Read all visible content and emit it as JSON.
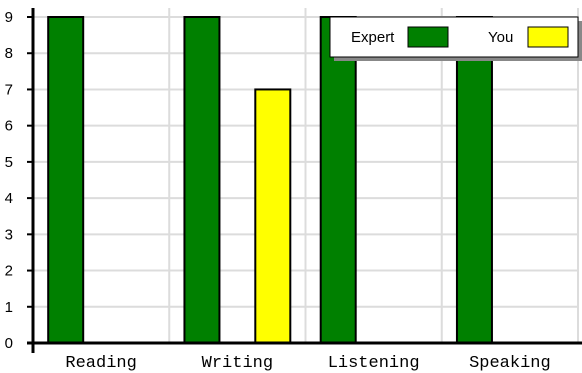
{
  "chart_data": {
    "type": "bar",
    "categories": [
      "Reading",
      "Writing",
      "Listening",
      "Speaking"
    ],
    "series": [
      {
        "name": "Expert",
        "values": [
          9,
          9,
          9,
          9
        ],
        "color": "#008000"
      },
      {
        "name": "You",
        "values": [
          0,
          7,
          0,
          0
        ],
        "color": "#ffff00"
      }
    ],
    "title": "",
    "xlabel": "",
    "ylabel": "",
    "ylim": [
      0,
      9
    ],
    "yticks": [
      0,
      1,
      2,
      3,
      4,
      5,
      6,
      7,
      8,
      9
    ],
    "grid": true,
    "legend": "top-right"
  }
}
